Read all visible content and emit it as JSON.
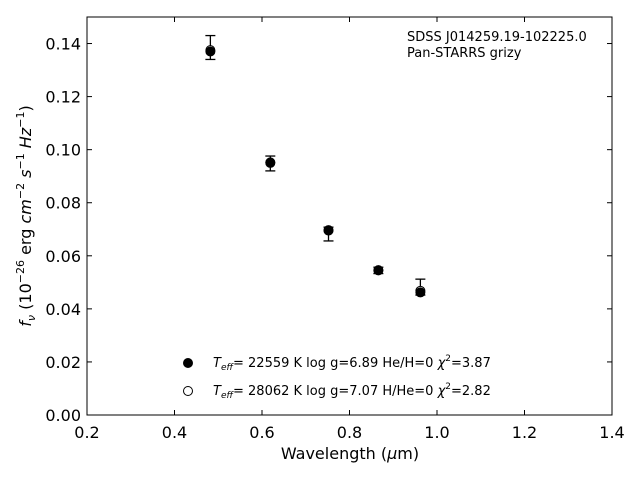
{
  "chart_data": {
    "type": "scatter",
    "xlabel": {
      "pre": "Wavelength (",
      "sym": "μ",
      "post": "m)"
    },
    "ylabel": {
      "f": "f",
      "nu": "ν",
      "open": " (10",
      "exp1": "−26",
      "mid1": " erg ",
      "cm": "cm",
      "exp2": "−2",
      "s": " s",
      "exp3": "−1",
      "hz": " Hz",
      "exp4": "−1",
      "close": ")"
    },
    "xlim": [
      0.2,
      1.4
    ],
    "ylim": [
      0.0,
      0.15
    ],
    "xticks": [
      "0.2",
      "0.4",
      "0.6",
      "0.8",
      "1.0",
      "1.2",
      "1.4"
    ],
    "yticks": [
      "0.00",
      "0.02",
      "0.04",
      "0.06",
      "0.08",
      "0.10",
      "0.12",
      "0.14"
    ],
    "annotation": [
      "SDSS J014259.19-102225.0",
      "Pan-STARRS grizy"
    ],
    "observed": [
      {
        "x": 0.482,
        "y": 0.1385,
        "yerr_up": 0.0045,
        "yerr_down": 0.0045
      },
      {
        "x": 0.619,
        "y": 0.0948,
        "yerr_up": 0.0028,
        "yerr_down": 0.0028
      },
      {
        "x": 0.752,
        "y": 0.0682,
        "yerr_up": 0.0026,
        "yerr_down": 0.0026
      },
      {
        "x": 0.866,
        "y": 0.0545,
        "yerr_up": 0.0012,
        "yerr_down": 0.0012
      },
      {
        "x": 0.962,
        "y": 0.0482,
        "yerr_up": 0.003,
        "yerr_down": 0.003
      }
    ],
    "series": [
      {
        "marker": "filled",
        "legend": {
          "t": "T",
          "sub": "eff",
          "rest": "= 22559 K  log g=6.89  He/H=0  ",
          "chi": "χ",
          "sup": "2",
          "val": "=3.87"
        },
        "points": [
          {
            "x": 0.482,
            "y": 0.137
          },
          {
            "x": 0.619,
            "y": 0.095
          },
          {
            "x": 0.752,
            "y": 0.0695
          },
          {
            "x": 0.866,
            "y": 0.0545
          },
          {
            "x": 0.962,
            "y": 0.0462
          }
        ]
      },
      {
        "marker": "open",
        "legend": {
          "t": "T",
          "sub": "eff",
          "rest": "= 28062 K  log g=7.07  H/He=0  ",
          "chi": "χ",
          "sup": "2",
          "val": "=2.82"
        },
        "points": [
          {
            "x": 0.482,
            "y": 0.1375
          },
          {
            "x": 0.619,
            "y": 0.0952
          },
          {
            "x": 0.752,
            "y": 0.0697
          },
          {
            "x": 0.866,
            "y": 0.0546
          },
          {
            "x": 0.962,
            "y": 0.0468
          }
        ]
      }
    ]
  }
}
